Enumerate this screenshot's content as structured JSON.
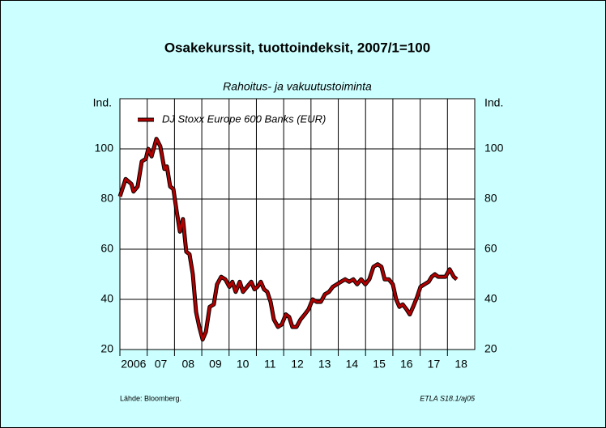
{
  "chart_data": {
    "type": "line",
    "title": "Osakekurssit, tuottoindeksit, 2007/1=100",
    "subtitle": "Rahoitus- ja vakuutustoiminta",
    "ylabel": "Ind.",
    "y2label": "Ind.",
    "source": "Lähde:   Bloomberg.",
    "note": "ETLA S18.1/aj05",
    "xlim": [
      2006,
      2019
    ],
    "xticks": [
      {
        "value": 2006,
        "label": "2006"
      },
      {
        "value": 2007,
        "label": "07"
      },
      {
        "value": 2008,
        "label": "08"
      },
      {
        "value": 2009,
        "label": "09"
      },
      {
        "value": 2010,
        "label": "10"
      },
      {
        "value": 2011,
        "label": "11"
      },
      {
        "value": 2012,
        "label": "12"
      },
      {
        "value": 2013,
        "label": "13"
      },
      {
        "value": 2014,
        "label": "14"
      },
      {
        "value": 2015,
        "label": "15"
      },
      {
        "value": 2016,
        "label": "16"
      },
      {
        "value": 2017,
        "label": "17"
      },
      {
        "value": 2018,
        "label": "18"
      }
    ],
    "ylim": [
      20,
      120
    ],
    "yticks": [
      20,
      40,
      60,
      80,
      100
    ],
    "y2lim": [
      20,
      120
    ],
    "y2ticks": [
      20,
      40,
      60,
      80,
      100
    ],
    "grid": true,
    "legend": "upper left",
    "x": [
      2006.0,
      2006.21,
      2006.42,
      2006.5,
      2006.65,
      2006.8,
      2006.95,
      2007.04,
      2007.16,
      2007.34,
      2007.48,
      2007.63,
      2007.72,
      2007.84,
      2007.96,
      2008.08,
      2008.2,
      2008.31,
      2008.43,
      2008.55,
      2008.67,
      2008.79,
      2008.91,
      2009.03,
      2009.15,
      2009.29,
      2009.44,
      2009.56,
      2009.71,
      2009.86,
      2010.01,
      2010.12,
      2010.24,
      2010.39,
      2010.51,
      2010.66,
      2010.81,
      2010.93,
      2011.04,
      2011.16,
      2011.28,
      2011.4,
      2011.52,
      2011.64,
      2011.79,
      2011.93,
      2012.08,
      2012.2,
      2012.32,
      2012.47,
      2012.62,
      2012.77,
      2012.91,
      2013.06,
      2013.21,
      2013.36,
      2013.51,
      2013.66,
      2013.8,
      2013.95,
      2014.1,
      2014.25,
      2014.4,
      2014.55,
      2014.69,
      2014.84,
      2014.99,
      2015.14,
      2015.29,
      2015.44,
      2015.58,
      2015.7,
      2015.85,
      2016.0,
      2016.12,
      2016.24,
      2016.36,
      2016.5,
      2016.62,
      2016.74,
      2016.89,
      2017.01,
      2017.16,
      2017.31,
      2017.42,
      2017.54,
      2017.66,
      2017.78,
      2017.93,
      2018.08,
      2018.23,
      2018.34
    ],
    "series": [
      {
        "name": "DJ Stoxx Europe 600 Banks (EUR)",
        "color": "#b00000",
        "values": [
          81,
          88,
          86,
          83,
          85,
          95,
          96,
          100,
          97,
          104,
          101,
          92,
          93,
          85,
          84,
          75,
          67,
          72,
          59,
          58,
          50,
          35,
          29,
          24,
          27,
          37,
          38,
          46,
          49,
          48,
          45,
          47,
          43,
          47,
          43,
          45,
          47,
          44,
          45,
          47,
          44,
          43,
          39,
          32,
          29,
          30,
          34,
          33,
          29,
          29,
          32,
          34,
          36,
          40,
          39,
          39,
          42,
          43,
          45,
          46,
          47,
          48,
          47,
          48,
          46,
          48,
          46,
          48,
          53,
          54,
          53,
          48,
          48,
          46,
          40,
          37,
          38,
          36,
          34,
          37,
          41,
          45,
          46,
          47,
          49,
          50,
          49,
          49,
          49,
          52,
          49,
          48
        ]
      }
    ]
  }
}
